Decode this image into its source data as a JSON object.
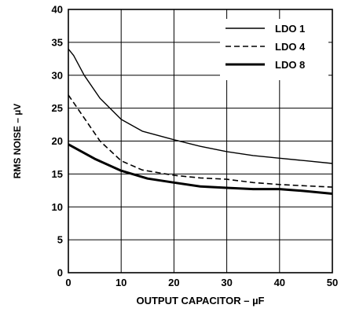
{
  "chart_data": {
    "type": "line",
    "title": "",
    "xlabel": "OUTPUT CAPACITOR – µF",
    "ylabel": "RMS NOISE – µV",
    "xlim": [
      0,
      50
    ],
    "ylim": [
      0,
      40
    ],
    "xticks": [
      0,
      10,
      20,
      30,
      40,
      50
    ],
    "yticks": [
      0,
      5,
      10,
      15,
      20,
      25,
      30,
      35,
      40
    ],
    "grid": true,
    "legend_position": "top-right",
    "series": [
      {
        "name": "LDO 1",
        "style": "solid-thin",
        "color": "#000000",
        "x": [
          0,
          1,
          3,
          6,
          10,
          14,
          20,
          25,
          30,
          35,
          40,
          45,
          50
        ],
        "y": [
          34,
          33,
          30,
          26.5,
          23.3,
          21.5,
          20.2,
          19.2,
          18.4,
          17.8,
          17.4,
          17.0,
          16.6
        ]
      },
      {
        "name": "LDO 4",
        "style": "dashed",
        "color": "#000000",
        "x": [
          0,
          3,
          6,
          10,
          14,
          20,
          25,
          30,
          35,
          40,
          45,
          50
        ],
        "y": [
          27,
          23.5,
          20,
          17,
          15.6,
          14.8,
          14.4,
          14.2,
          13.7,
          13.4,
          13.2,
          13.0
        ]
      },
      {
        "name": "LDO 8",
        "style": "solid-thick",
        "color": "#000000",
        "x": [
          0,
          5,
          10,
          15,
          20,
          25,
          30,
          35,
          40,
          45,
          50
        ],
        "y": [
          19.5,
          17.3,
          15.5,
          14.3,
          13.7,
          13.1,
          12.9,
          12.7,
          12.7,
          12.4,
          12.0
        ]
      }
    ]
  }
}
